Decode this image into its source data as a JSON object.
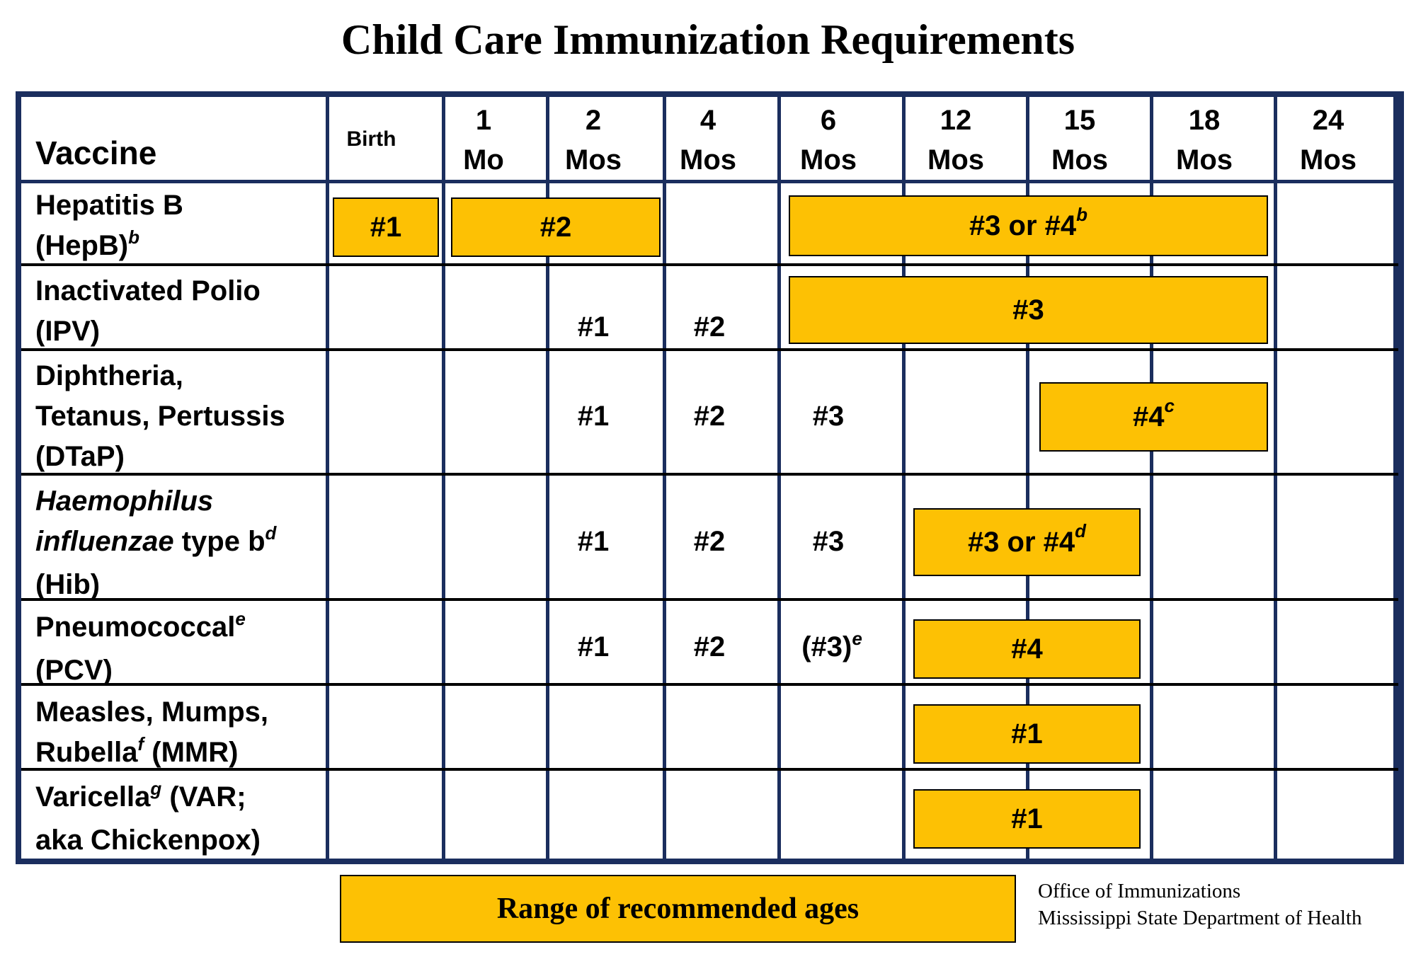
{
  "title": "Child Care Immunization Requirements",
  "header": {
    "vaccine_label": "Vaccine",
    "ages": [
      {
        "top": "",
        "bottom": "Birth"
      },
      {
        "top": "1",
        "bottom": "Mo"
      },
      {
        "top": "2",
        "bottom": "Mos"
      },
      {
        "top": "4",
        "bottom": "Mos"
      },
      {
        "top": "6",
        "bottom": "Mos"
      },
      {
        "top": "12",
        "bottom": "Mos"
      },
      {
        "top": "15",
        "bottom": "Mos"
      },
      {
        "top": "18",
        "bottom": "Mos"
      },
      {
        "top": "24",
        "bottom": "Mos"
      }
    ]
  },
  "vaccines": [
    {
      "lines": [
        "Hepatitis B",
        "(HepB)"
      ],
      "footnote": "b",
      "bars": [
        {
          "label": "#1",
          "sup": ""
        },
        {
          "label": "#2",
          "sup": ""
        },
        {
          "label": "#3 or #4",
          "sup": "b"
        }
      ],
      "doses": []
    },
    {
      "lines": [
        "Inactivated Polio",
        "(IPV)"
      ],
      "bars": [
        {
          "label": "#3",
          "sup": ""
        }
      ],
      "doses": [
        "#1",
        "#2"
      ]
    },
    {
      "lines": [
        "Diphtheria,",
        "Tetanus, Pertussis",
        "(DTaP)"
      ],
      "bars": [
        {
          "label": "#4",
          "sup": "c"
        }
      ],
      "doses": [
        "#1",
        "#2",
        "#3"
      ]
    },
    {
      "lines": [
        "Haemophilus",
        "influenzae",
        "type b",
        "(Hib)"
      ],
      "footnote": "d",
      "bars": [
        {
          "label": "#3 or #4",
          "sup": "d"
        }
      ],
      "doses": [
        "#1",
        "#2",
        "#3"
      ]
    },
    {
      "lines": [
        "Pneumococcal",
        "(PCV)"
      ],
      "footnote": "e",
      "bars": [
        {
          "label": "#4",
          "sup": ""
        }
      ],
      "doses": [
        "#1",
        "#2",
        "(#3)"
      ],
      "dose_footnote": "e"
    },
    {
      "lines": [
        "Measles, Mumps,",
        "Rubella",
        "(MMR)"
      ],
      "footnote": "f",
      "bars": [
        {
          "label": "#1",
          "sup": ""
        }
      ],
      "doses": []
    },
    {
      "lines": [
        "Varicella",
        "(VAR;",
        "aka Chickenpox)"
      ],
      "footnote": "g",
      "bars": [
        {
          "label": "#1",
          "sup": ""
        }
      ],
      "doses": []
    }
  ],
  "legend": {
    "label": "Range of recommended ages"
  },
  "credits": {
    "line1": "Office of Immunizations",
    "line2": "Mississippi State Department of Health"
  },
  "colors": {
    "bar": "#fdc104",
    "frame": "#1b2e5e",
    "row_divider": "#000000"
  }
}
